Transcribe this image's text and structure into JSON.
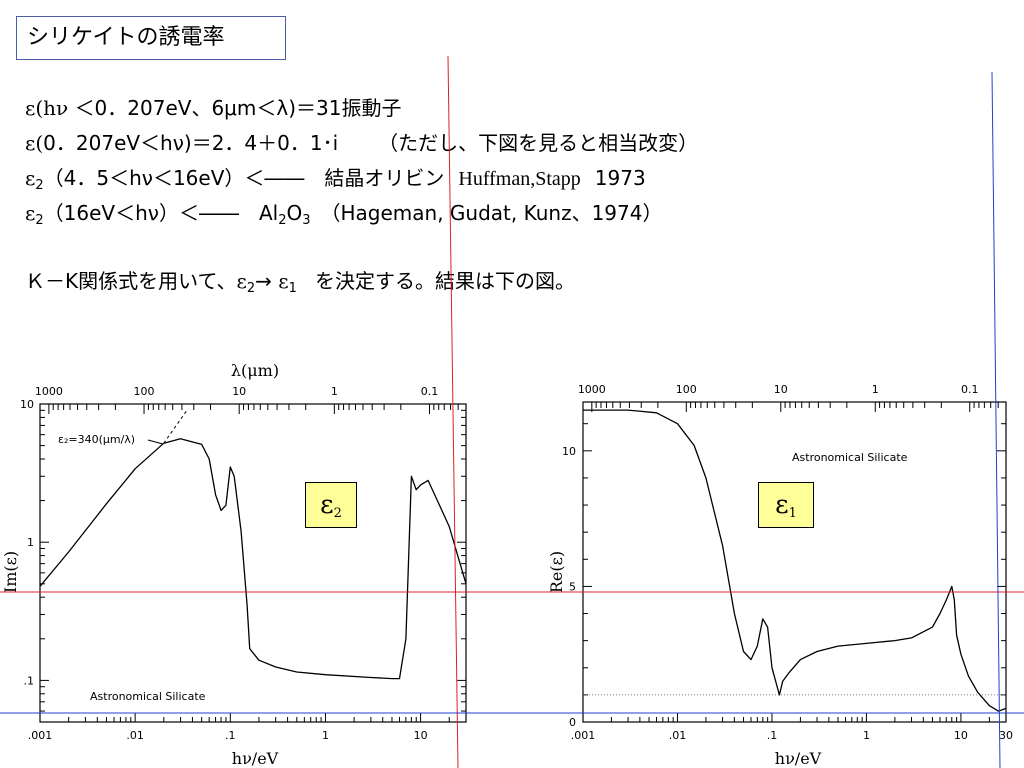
{
  "slide": {
    "title": "シリケイトの誘電率",
    "line1": {
      "eps": "ε(hν",
      "text": "＜0．207eV、6μm＜λ)＝31振動子"
    },
    "line2": {
      "eps": "ε(",
      "text_a": "0．207eV＜hν)＝2．4＋0．1･i",
      "text_b": "（ただし、下図を見ると相当改変）"
    },
    "line3": {
      "eps": "ε",
      "sub": "2",
      "text_a": "（4．5＜hν＜16eV）＜――　結晶オリビン",
      "text_b": "Huffman,Stapp",
      "text_c": "1973"
    },
    "line4": {
      "eps": "ε",
      "sub": "2",
      "text_a": "（16eV＜hν）＜――　Al",
      "sub_a": "2",
      "text_b": "O",
      "sub_b": "3",
      "text_c": "（Hageman, Gudat, Kunz、1974）"
    },
    "line5": {
      "text_a": "Ｋ－K関係式を用いて、",
      "eps_a": "ε",
      "sub_a": "2",
      "arrow": "→",
      "eps_b": "ε",
      "sub_b": "1",
      "text_b": "を決定する。結果は下の図。"
    },
    "eps2_box": {
      "eps": "ε",
      "sub": "2"
    },
    "eps1_box": {
      "eps": "ε",
      "sub": "1"
    }
  },
  "colors": {
    "title_border": "#4a5fa8",
    "red_line": "#e02020",
    "blue_line": "#2040d0",
    "box_fill": "#ffff99"
  },
  "chart_data": [
    {
      "type": "line",
      "log_x": true,
      "log_y": true,
      "xlabel": "hν/eV",
      "ylabel": "Im(ε)",
      "top_axis_label": "λ(μm)",
      "x_ticks": [
        ".001",
        ".01",
        ".1",
        "1",
        "10"
      ],
      "y_ticks": [
        ".1",
        "1",
        "10"
      ],
      "top_ticks": [
        "1000",
        "100",
        "10",
        "1",
        "0.1"
      ],
      "annotation": "ε₂=340(μm/λ)",
      "inner_label": "Astronomical Silicate",
      "xlim": [
        0.001,
        30
      ],
      "ylim": [
        0.05,
        10
      ],
      "series": [
        {
          "x": [
            0.001,
            0.002,
            0.005,
            0.01,
            0.02,
            0.03,
            0.05,
            0.06,
            0.07,
            0.08,
            0.09,
            0.1,
            0.11,
            0.13,
            0.15,
            0.16,
            0.2,
            0.3,
            0.5,
            1,
            3,
            5,
            6,
            7,
            8,
            9,
            10,
            12,
            15,
            20,
            30
          ],
          "y": [
            0.48,
            0.85,
            1.9,
            3.4,
            5.2,
            5.6,
            5.1,
            4.0,
            2.2,
            1.7,
            1.85,
            3.5,
            3.0,
            1.2,
            0.35,
            0.17,
            0.14,
            0.125,
            0.115,
            0.11,
            0.105,
            0.103,
            0.103,
            0.2,
            3.0,
            2.4,
            2.6,
            2.8,
            2.0,
            1.3,
            0.5
          ]
        }
      ]
    },
    {
      "type": "line",
      "log_x": true,
      "xlabel": "hν/eV",
      "ylabel": "Re(ε)",
      "x_ticks": [
        ".001",
        ".01",
        ".1",
        "1",
        "10",
        "30"
      ],
      "y_ticks": [
        "0",
        "5",
        "10"
      ],
      "top_ticks": [
        "1000",
        "100",
        "10",
        "1",
        "0.1"
      ],
      "inner_label": "Astronomical Silicate",
      "xlim": [
        0.001,
        30
      ],
      "ylim": [
        0,
        11.8
      ],
      "series": [
        {
          "x": [
            0.001,
            0.003,
            0.006,
            0.01,
            0.015,
            0.02,
            0.03,
            0.04,
            0.05,
            0.06,
            0.07,
            0.08,
            0.09,
            0.1,
            0.12,
            0.13,
            0.15,
            0.2,
            0.3,
            0.5,
            1,
            2,
            3,
            5,
            6,
            7,
            8,
            8.5,
            9,
            10,
            12,
            15,
            20,
            25,
            30
          ],
          "y": [
            11.5,
            11.5,
            11.4,
            11.0,
            10.2,
            9.0,
            6.5,
            4.0,
            2.6,
            2.3,
            2.8,
            3.8,
            3.5,
            2.0,
            1.0,
            1.5,
            1.8,
            2.3,
            2.6,
            2.8,
            2.9,
            3.0,
            3.1,
            3.5,
            4.0,
            4.5,
            5.0,
            4.5,
            3.2,
            2.5,
            1.7,
            1.1,
            0.6,
            0.4,
            0.5
          ]
        }
      ]
    }
  ]
}
